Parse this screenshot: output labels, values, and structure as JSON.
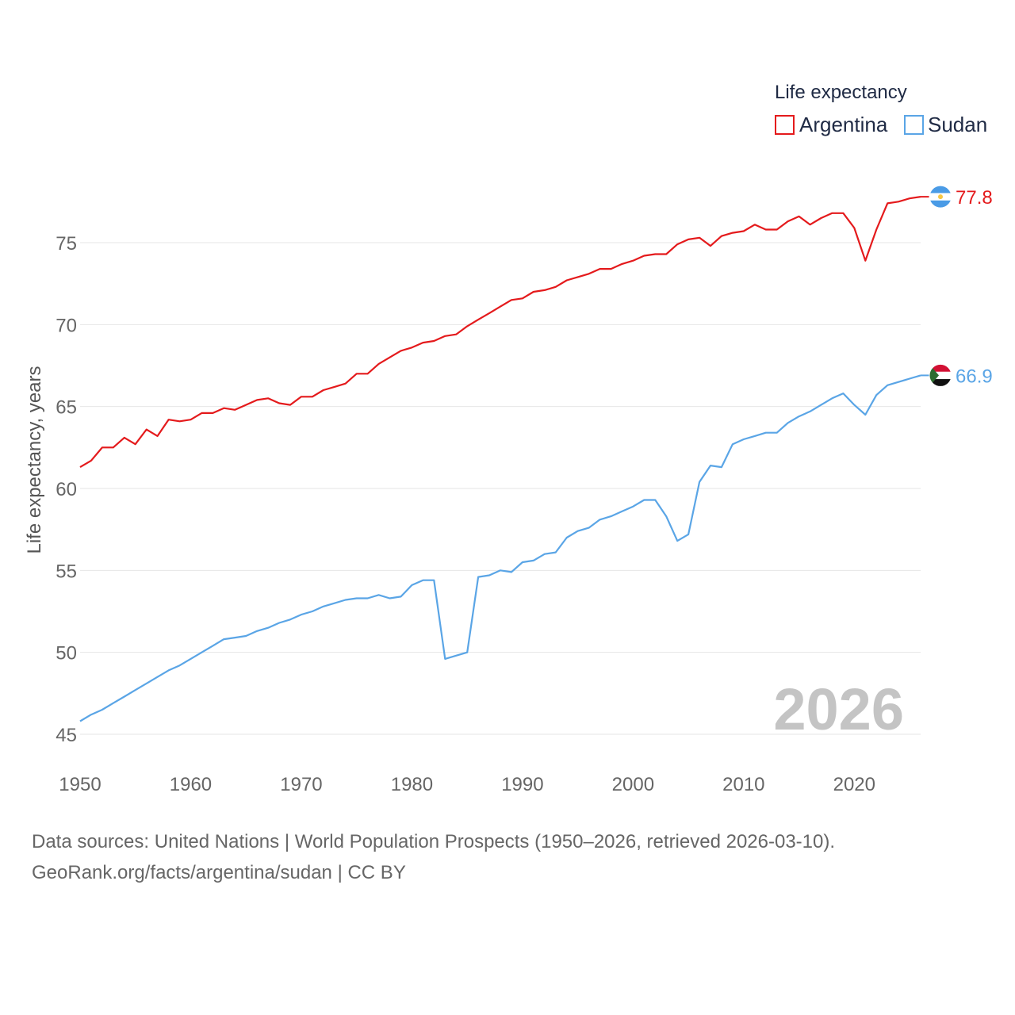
{
  "chart_data": {
    "type": "line",
    "legend_title": "Life expectancy",
    "ylabel": "Life expectancy, years",
    "xlabel": "",
    "current_year_label": "2026",
    "xlim": [
      1950,
      2026
    ],
    "ylim": [
      44,
      80
    ],
    "x_ticks": [
      1950,
      1960,
      1970,
      1980,
      1990,
      2000,
      2010,
      2020
    ],
    "y_ticks": [
      45,
      50,
      55,
      60,
      65,
      70,
      75
    ],
    "x": [
      1950,
      1951,
      1952,
      1953,
      1954,
      1955,
      1956,
      1957,
      1958,
      1959,
      1960,
      1961,
      1962,
      1963,
      1964,
      1965,
      1966,
      1967,
      1968,
      1969,
      1970,
      1971,
      1972,
      1973,
      1974,
      1975,
      1976,
      1977,
      1978,
      1979,
      1980,
      1981,
      1982,
      1983,
      1984,
      1985,
      1986,
      1987,
      1988,
      1989,
      1990,
      1991,
      1992,
      1993,
      1994,
      1995,
      1996,
      1997,
      1998,
      1999,
      2000,
      2001,
      2002,
      2003,
      2004,
      2005,
      2006,
      2007,
      2008,
      2009,
      2010,
      2011,
      2012,
      2013,
      2014,
      2015,
      2016,
      2017,
      2018,
      2019,
      2020,
      2021,
      2022,
      2023,
      2024,
      2025,
      2026
    ],
    "series": [
      {
        "name": "Argentina",
        "color": "#e41a1c",
        "end_label": "77.8",
        "values": [
          61.3,
          61.7,
          62.5,
          62.5,
          63.1,
          62.7,
          63.6,
          63.2,
          64.2,
          64.1,
          64.2,
          64.6,
          64.6,
          64.9,
          64.8,
          65.1,
          65.4,
          65.5,
          65.2,
          65.1,
          65.6,
          65.6,
          66.0,
          66.2,
          66.4,
          67.0,
          67.0,
          67.6,
          68.0,
          68.4,
          68.6,
          68.9,
          69.0,
          69.3,
          69.4,
          69.9,
          70.3,
          70.7,
          71.1,
          71.5,
          71.6,
          72.0,
          72.1,
          72.3,
          72.7,
          72.9,
          73.1,
          73.4,
          73.4,
          73.7,
          73.9,
          74.2,
          74.3,
          74.3,
          74.9,
          75.2,
          75.3,
          74.8,
          75.4,
          75.6,
          75.7,
          76.1,
          75.8,
          75.8,
          76.3,
          76.6,
          76.1,
          76.5,
          76.8,
          76.8,
          75.9,
          73.9,
          75.8,
          77.4,
          77.5,
          77.7,
          77.8
        ]
      },
      {
        "name": "Sudan",
        "color": "#5aa5e6",
        "end_label": "66.9",
        "values": [
          45.8,
          46.2,
          46.5,
          46.9,
          47.3,
          47.7,
          48.1,
          48.5,
          48.9,
          49.2,
          49.6,
          50.0,
          50.4,
          50.8,
          50.9,
          51.0,
          51.3,
          51.5,
          51.8,
          52.0,
          52.3,
          52.5,
          52.8,
          53.0,
          53.2,
          53.3,
          53.3,
          53.5,
          53.3,
          53.4,
          54.1,
          54.4,
          54.4,
          49.6,
          49.8,
          50.0,
          54.6,
          54.7,
          55.0,
          54.9,
          55.5,
          55.6,
          56.0,
          56.1,
          57.0,
          57.4,
          57.6,
          58.1,
          58.3,
          58.6,
          58.9,
          59.3,
          59.3,
          58.3,
          56.8,
          57.2,
          60.4,
          61.4,
          61.3,
          62.7,
          63.0,
          63.2,
          63.4,
          63.4,
          64.0,
          64.4,
          64.7,
          65.1,
          65.5,
          65.8,
          65.1,
          64.5,
          65.7,
          66.3,
          66.5,
          66.7,
          66.9
        ]
      }
    ]
  },
  "source": {
    "line1": "Data sources: United Nations | World Population Prospects (1950–2026, retrieved 2026-03-10).",
    "line2": "GeoRank.org/facts/argentina/sudan | CC BY"
  }
}
